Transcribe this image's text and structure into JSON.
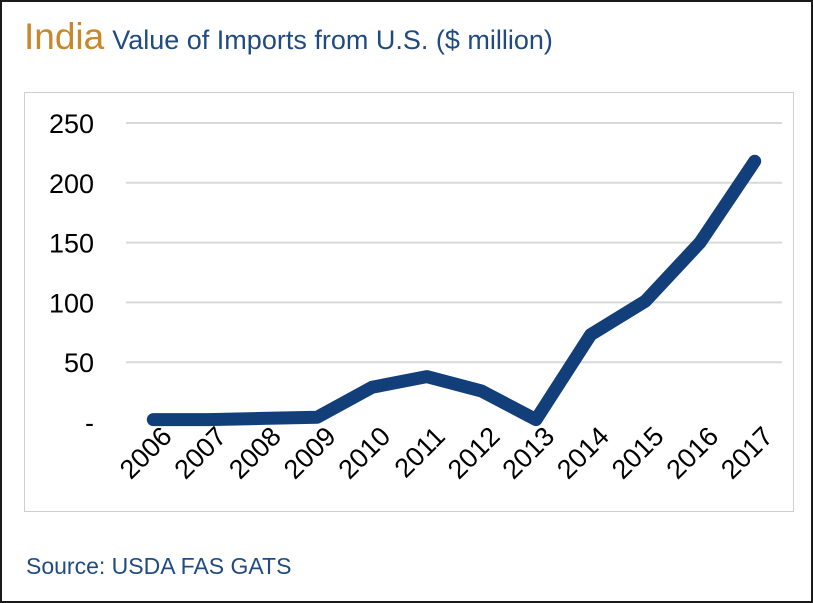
{
  "header": {
    "country": "India",
    "subtitle": "Value of Imports from U.S. ($ million)"
  },
  "footer": {
    "source": "Source: USDA FAS GATS"
  },
  "chart_data": {
    "type": "line",
    "x": [
      "2006",
      "2007",
      "2008",
      "2009",
      "2010",
      "2011",
      "2012",
      "2013",
      "2014",
      "2015",
      "2016",
      "2017"
    ],
    "series": [
      {
        "values": [
          2,
          2,
          3,
          4,
          29,
          38,
          26,
          2,
          73,
          101,
          150,
          218
        ],
        "color": "#123f7a"
      }
    ],
    "y_ticks": [
      {
        "value": 250,
        "label": "250"
      },
      {
        "value": 200,
        "label": "200"
      },
      {
        "value": 150,
        "label": "150"
      },
      {
        "value": 100,
        "label": "100"
      },
      {
        "value": 50,
        "label": "50"
      },
      {
        "value": 0,
        "label": "-"
      }
    ],
    "ylim": [
      0,
      250
    ],
    "grid": true,
    "legend": "none",
    "colors": {
      "gridline": "#d9d9d9",
      "tick_text": "#000000"
    }
  }
}
